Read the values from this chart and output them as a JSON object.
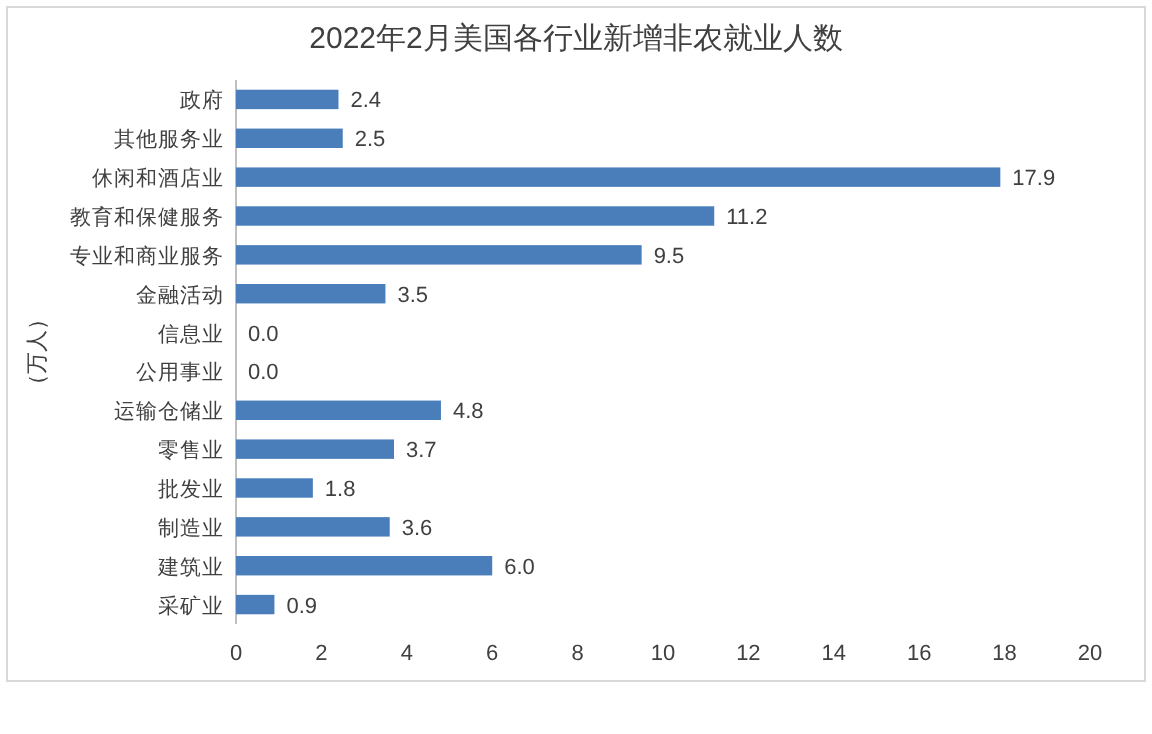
{
  "chart_data": {
    "type": "bar",
    "orientation": "horizontal",
    "title": "2022年2月美国各行业新增非农就业人数",
    "ylabel": "（万人）",
    "categories": [
      "政府",
      "其他服务业",
      "休闲和酒店业",
      "教育和保健服务",
      "专业和商业服务",
      "金融活动",
      "信息业",
      "公用事业",
      "运输仓储业",
      "零售业",
      "批发业",
      "制造业",
      "建筑业",
      "采矿业"
    ],
    "values": [
      2.4,
      2.5,
      17.9,
      11.2,
      9.5,
      3.5,
      0.0,
      0.0,
      4.8,
      3.7,
      1.8,
      3.6,
      6.0,
      0.9
    ],
    "color": "#4a7ebb",
    "xlim": [
      0,
      20
    ],
    "xticks": [
      0,
      2,
      4,
      6,
      8,
      10,
      12,
      14,
      16,
      18,
      20
    ],
    "value_labels": [
      "2.4",
      "2.5",
      "17.9",
      "11.2",
      "9.5",
      "3.5",
      "0.0",
      "0.0",
      "4.8",
      "3.7",
      "1.8",
      "3.6",
      "6.0",
      "0.9"
    ]
  }
}
